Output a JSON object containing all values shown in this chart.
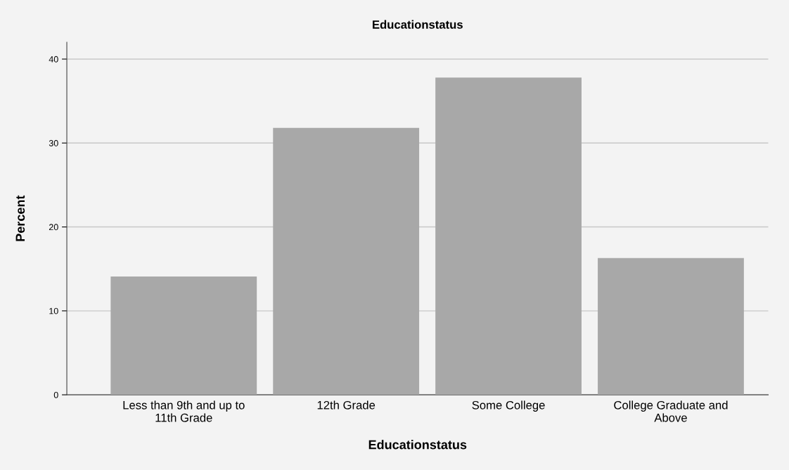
{
  "chart_data": {
    "type": "bar",
    "title": "Educationstatus",
    "xlabel": "Educationstatus",
    "ylabel": "Percent",
    "categories": [
      "Less than 9th and up to 11th Grade",
      "12th Grade",
      "Some College",
      "College Graduate and Above"
    ],
    "values": [
      14.1,
      31.8,
      37.8,
      16.3
    ],
    "color": "#a8a8a8",
    "ylim": [
      0,
      42
    ],
    "yticks": [
      0,
      10,
      20,
      30,
      40
    ],
    "grid": "y",
    "legend": false
  }
}
